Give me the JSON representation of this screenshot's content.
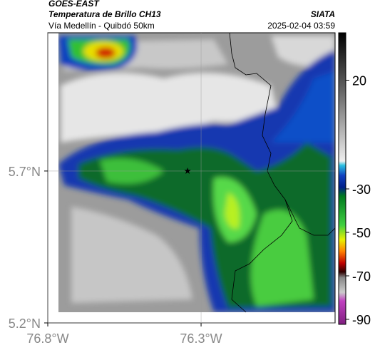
{
  "header": {
    "source": "GOES-EAST",
    "product": "Temperatura de Brillo CH13",
    "route": "Vía Medellín - Quibdó 50km",
    "agency": "SIATA",
    "datetime": "2025-02-04 03:59"
  },
  "map": {
    "xlim": [
      -76.8,
      -75.863
    ],
    "ylim": [
      5.2,
      6.155
    ],
    "xticks": [
      {
        "value": -76.8,
        "label": "76.8°W"
      },
      {
        "value": -76.3,
        "label": "76.3°W"
      }
    ],
    "yticks": [
      {
        "value": 5.2,
        "label": "5.2°N"
      },
      {
        "value": 5.7,
        "label": "5.7°N"
      }
    ],
    "grid": true,
    "station": {
      "lon": -76.344,
      "lat": 5.7
    }
  },
  "colorbar": {
    "lim": [
      -92.3,
      41.8
    ],
    "ticks": [
      20,
      -30,
      -50,
      -70,
      -90
    ]
  }
}
